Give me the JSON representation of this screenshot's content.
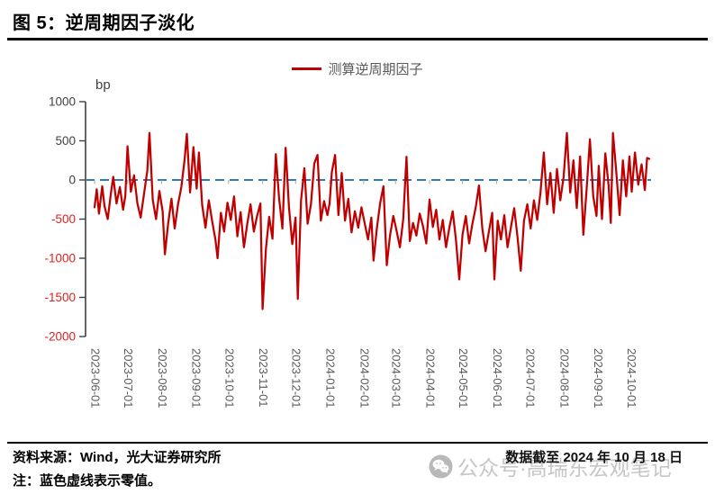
{
  "title": "图 5：逆周期因子淡化",
  "legend": {
    "series_label": "测算逆周期因子"
  },
  "axis_unit": "bp",
  "footer": {
    "source": "资料来源：Wind，光大证券研究所",
    "note": "注：蓝色虚线表示零值。",
    "data_cutoff": "数据截至 2024 年 10 月 18 日",
    "watermark": "公众号·高瑞东宏观笔记"
  },
  "colors": {
    "series": "#c00000",
    "zero_line": "#2b7cba",
    "axis": "#3f3f3f",
    "tick_label_positive": "#404040",
    "tick_label_negative": "#e02020",
    "x_label": "#595959",
    "month_tick": "#a6a6a6",
    "watermark": "#c6c6c6"
  },
  "chart_data": {
    "type": "line",
    "title": "逆周期因子淡化",
    "ylabel": "bp",
    "ylim": [
      -2000,
      1000
    ],
    "yticks": [
      1000,
      500,
      0,
      -500,
      -1000,
      -1500,
      -2000
    ],
    "grid": false,
    "legend_position": "top-center",
    "zero_line": {
      "style": "dashed",
      "color": "#2b7cba",
      "meaning": "蓝色虚线表示零值"
    },
    "x_start_date": "2023-06-01",
    "x_end_date": "2024-10-18",
    "x_tick_labels": [
      "2023-06-01",
      "2023-07-01",
      "2023-08-01",
      "2023-09-01",
      "2023-10-01",
      "2023-11-01",
      "2023-12-01",
      "2024-01-01",
      "2024-02-01",
      "2024-03-01",
      "2024-04-01",
      "2024-05-01",
      "2024-06-01",
      "2024-07-01",
      "2024-08-01",
      "2024-09-01",
      "2024-10-01"
    ],
    "month_tick_day_offsets": [
      0,
      30,
      61,
      92,
      122,
      153,
      183,
      214,
      245,
      274,
      305,
      335,
      366,
      396,
      427,
      458,
      488
    ],
    "series": [
      {
        "name": "测算逆周期因子",
        "unit": "bp",
        "days_from_2023_06_01": [
          0,
          2,
          4,
          7,
          9,
          12,
          15,
          17,
          20,
          23,
          26,
          28,
          30,
          33,
          36,
          39,
          42,
          45,
          48,
          50,
          53,
          56,
          59,
          62,
          64,
          67,
          70,
          73,
          76,
          79,
          82,
          84,
          87,
          90,
          93,
          95,
          98,
          101,
          104,
          107,
          110,
          112,
          115,
          118,
          121,
          124,
          127,
          130,
          133,
          136,
          139,
          142,
          145,
          148,
          151,
          153,
          156,
          159,
          162,
          165,
          168,
          171,
          174,
          177,
          180,
          183,
          185,
          188,
          191,
          194,
          197,
          200,
          203,
          206,
          209,
          212,
          214,
          216,
          219,
          222,
          225,
          228,
          231,
          234,
          237,
          240,
          243,
          246,
          249,
          252,
          254,
          257,
          260,
          263,
          266,
          269,
          272,
          275,
          278,
          281,
          284,
          287,
          290,
          293,
          296,
          299,
          302,
          305,
          308,
          311,
          314,
          317,
          320,
          323,
          326,
          329,
          332,
          335,
          338,
          341,
          344,
          347,
          350,
          353,
          356,
          359,
          362,
          364,
          367,
          370,
          373,
          376,
          379,
          382,
          385,
          388,
          391,
          394,
          397,
          400,
          403,
          406,
          409,
          412,
          415,
          418,
          421,
          424,
          427,
          430,
          433,
          436,
          439,
          442,
          445,
          448,
          451,
          454,
          457,
          459,
          462,
          465,
          468,
          470,
          472,
          475,
          478,
          481,
          484,
          487,
          489,
          492,
          495,
          498,
          501,
          503,
          505
        ],
        "values": [
          -350,
          -120,
          -430,
          -80,
          -330,
          -500,
          -160,
          40,
          -300,
          -90,
          -380,
          -200,
          430,
          -150,
          60,
          -300,
          -480,
          -180,
          120,
          600,
          -250,
          -500,
          -140,
          -400,
          -950,
          -560,
          -240,
          -620,
          -310,
          -90,
          260,
          590,
          -160,
          420,
          -110,
          350,
          -320,
          -610,
          -260,
          -520,
          -760,
          -1000,
          -420,
          -660,
          -290,
          -510,
          -210,
          -720,
          -410,
          -860,
          -560,
          -310,
          -660,
          -460,
          -300,
          -1650,
          -880,
          -470,
          -750,
          330,
          -230,
          -620,
          410,
          -350,
          -820,
          -480,
          -1520,
          -260,
          150,
          -560,
          -310,
          210,
          320,
          -520,
          -270,
          -450,
          -300,
          100,
          320,
          -450,
          90,
          -520,
          -240,
          -670,
          -400,
          -610,
          -350,
          -560,
          -760,
          -480,
          -1030,
          -620,
          -300,
          -80,
          -1090,
          -710,
          -460,
          -650,
          -860,
          -500,
          295,
          -780,
          -550,
          -710,
          -430,
          -590,
          -810,
          -250,
          -600,
          -380,
          -760,
          -510,
          -860,
          -610,
          -400,
          -760,
          -1270,
          -700,
          -460,
          -810,
          -560,
          -350,
          -70,
          -620,
          -910,
          -660,
          -420,
          -1270,
          -520,
          -760,
          -450,
          -860,
          -610,
          -360,
          -720,
          -1160,
          -520,
          -310,
          -620,
          -260,
          -510,
          -160,
          350,
          -310,
          90,
          -420,
          140,
          -260,
          40,
          600,
          -160,
          250,
          -360,
          300,
          -700,
          -110,
          520,
          -210,
          -460,
          180,
          -500,
          340,
          -80,
          -550,
          600,
          100,
          -450,
          250,
          -210,
          300,
          -150,
          350,
          -60,
          200,
          -130,
          280,
          270
        ]
      }
    ]
  }
}
